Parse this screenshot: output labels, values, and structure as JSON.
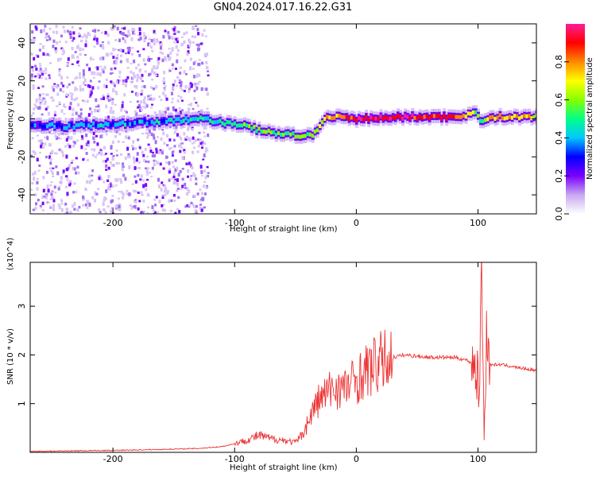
{
  "figure": {
    "title": "GN04.2024.017.16.22.G31"
  },
  "chart_data": [
    {
      "type": "heatmap",
      "xlabel": "Height of straight line (km)",
      "ylabel": "Frequency (Hz)",
      "xlim": [
        -268,
        148
      ],
      "ylim": [
        -50,
        50
      ],
      "xticks": [
        -200,
        -100,
        0,
        100
      ],
      "xtick_labels": [
        "-200",
        "-100",
        "0",
        "100"
      ],
      "yticks": [
        -40,
        -20,
        0,
        20,
        40
      ],
      "ytick_labels": [
        "-40",
        "-20",
        "0",
        "20",
        "40"
      ],
      "grid": false,
      "colorbar": {
        "label": "Normalized spectral amplitude",
        "range": [
          0,
          1
        ],
        "ticks": [
          0.0,
          0.2,
          0.4,
          0.6,
          0.8
        ],
        "tick_labels": [
          "0.0",
          "0.2",
          "0.4",
          "0.6",
          "0.8"
        ],
        "colormap": [
          "#ffffff",
          "#c8a8f0",
          "#7a00ff",
          "#0000ff",
          "#00c8ff",
          "#00ff88",
          "#88ff00",
          "#ffff00",
          "#ff8800",
          "#ff0000",
          "#ff1e96"
        ]
      },
      "ridge": {
        "x": [
          -268,
          -240,
          -210,
          -180,
          -150,
          -125,
          -110,
          -95,
          -80,
          -60,
          -45,
          -35,
          -25,
          -15,
          0,
          40,
          80,
          90,
          98,
          102,
          110,
          148
        ],
        "y": [
          -3,
          -4,
          -3,
          -2,
          -1,
          0,
          -2,
          -3,
          -6,
          -8,
          -9,
          -8,
          0,
          1,
          0,
          1,
          1,
          2,
          4,
          -2,
          1,
          1
        ],
        "amplitude": [
          0.3,
          0.35,
          0.4,
          0.4,
          0.4,
          0.45,
          0.45,
          0.5,
          0.55,
          0.55,
          0.6,
          0.6,
          0.7,
          0.8,
          0.95,
          0.9,
          0.85,
          0.7,
          0.6,
          0.5,
          0.75,
          0.7
        ]
      }
    },
    {
      "type": "line",
      "xlabel": "Height of straight line (km)",
      "ylabel": "SNR (10 * v/v)",
      "y_multiplier": "(x10^4)",
      "xlim": [
        -268,
        148
      ],
      "ylim": [
        0,
        3.9
      ],
      "xticks": [
        -200,
        -100,
        0,
        100
      ],
      "xtick_labels": [
        "-200",
        "-100",
        "0",
        "100"
      ],
      "yticks": [
        1,
        2,
        3
      ],
      "ytick_labels": [
        "1",
        "2",
        "3"
      ],
      "grid": false,
      "series": [
        {
          "color": "#ee3333",
          "x": [
            -268,
            -240,
            -200,
            -160,
            -130,
            -110,
            -100,
            -90,
            -80,
            -70,
            -60,
            -50,
            -45,
            -40,
            -35,
            -30,
            -25,
            -20,
            -15,
            -10,
            -5,
            0,
            10,
            20,
            30,
            40,
            60,
            80,
            90,
            98,
            101,
            103,
            105,
            107,
            110,
            120,
            130,
            148
          ],
          "y": [
            0.02,
            0.03,
            0.04,
            0.06,
            0.08,
            0.12,
            0.18,
            0.25,
            0.35,
            0.28,
            0.25,
            0.2,
            0.35,
            0.6,
            0.9,
            1.1,
            1.2,
            1.3,
            1.35,
            1.3,
            1.4,
            1.5,
            1.7,
            1.85,
            1.95,
            2.0,
            1.95,
            1.95,
            1.9,
            1.8,
            1.2,
            3.9,
            0.2,
            2.5,
            1.8,
            1.8,
            1.75,
            1.68
          ]
        }
      ]
    }
  ]
}
